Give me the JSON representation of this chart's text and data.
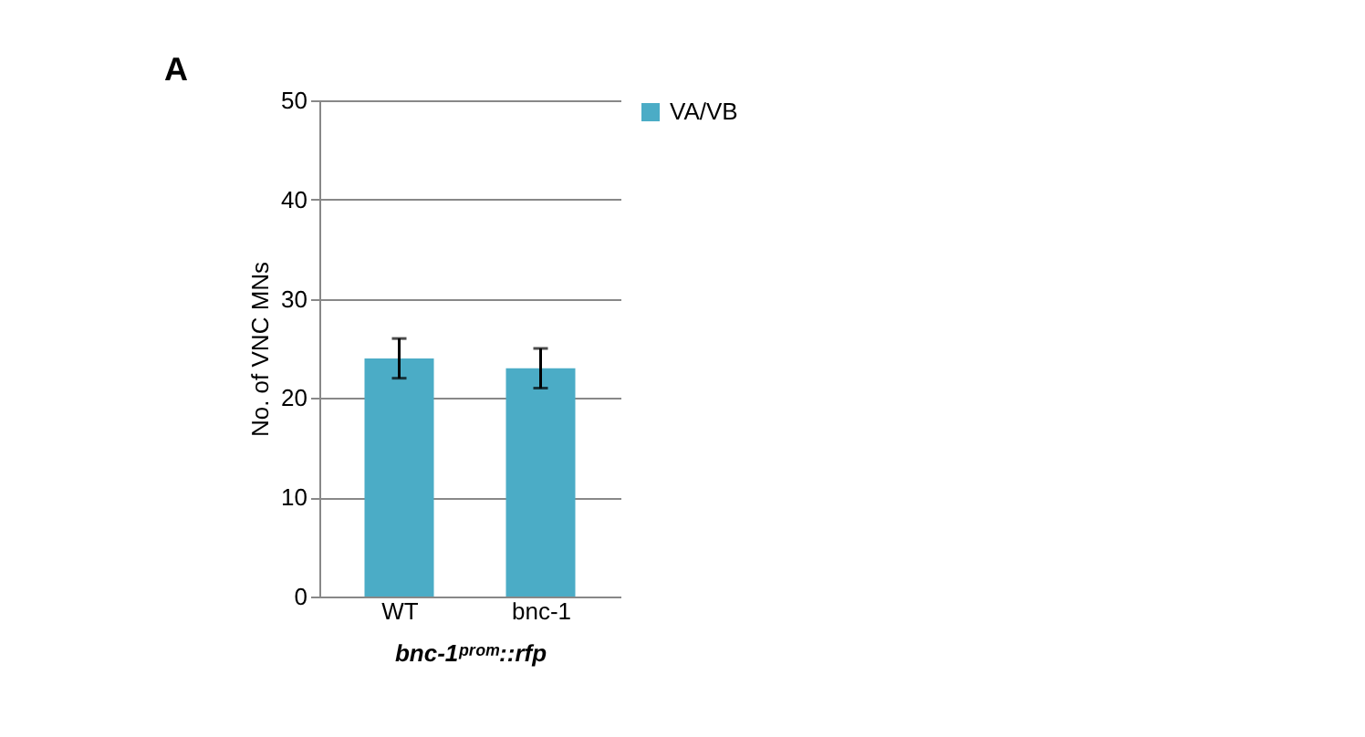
{
  "chart_data": {
    "type": "bar",
    "ylabel": "No. of VNC MNs",
    "xlabel": "bnc-1ᵖʳᵒᵐ::rfp",
    "categories": [
      "WT",
      "bnc-1"
    ],
    "series": [
      {
        "name": "VA/VB",
        "color": "#4bacc6",
        "values": [
          24,
          23
        ],
        "errors": [
          2,
          2
        ]
      }
    ],
    "ylim": [
      0,
      50
    ],
    "yticks": [
      0,
      10,
      20,
      30,
      40,
      50
    ],
    "grid": "y",
    "legend": "right",
    "annotations": [
      "A"
    ]
  }
}
